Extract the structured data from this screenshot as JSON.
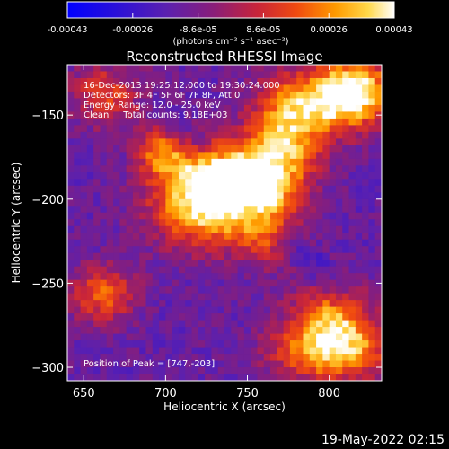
{
  "chart_data": {
    "type": "heatmap",
    "title": "Reconstructed RHESSI Image",
    "xlabel": "Heliocentric X (arcsec)",
    "ylabel": "Heliocentric Y (arcsec)",
    "xlim": [
      640,
      832
    ],
    "ylim": [
      -308,
      -120
    ],
    "xticks": [
      650,
      700,
      750,
      800
    ],
    "yticks": [
      -150,
      -200,
      -250,
      -300
    ],
    "colorbar": {
      "ticks": [
        "-0.00043",
        "-0.00026",
        "-8.6e-05",
        "8.6e-05",
        "0.00026",
        "0.00043"
      ],
      "label": "(photons cm⁻² s⁻¹ asec⁻²)",
      "range": [
        -0.00043,
        0.00043
      ],
      "colormap": [
        "#0000ff",
        "#3a00c8",
        "#6a1a9a",
        "#a0205a",
        "#e0301e",
        "#ff8a00",
        "#ffd33a",
        "#ffffff"
      ]
    },
    "annotations": [
      "16-Dec-2013 19:25:12.000 to 19:30:24.000",
      "Detectors: 3F 4F 5F 6F 7F 8F, Att 0",
      "Energy Range: 12.0 - 25.0 keV",
      "Clean     Total counts: 9.18E+03"
    ],
    "peak_label": "Position of Peak = [747,-203]",
    "peak": [
      747,
      -203
    ],
    "sources": [
      {
        "x": 725,
        "y": -200,
        "amp": 1.0,
        "sx": 24,
        "sy": 18
      },
      {
        "x": 735,
        "y": -182,
        "amp": 0.7,
        "sx": 20,
        "sy": 12
      },
      {
        "x": 770,
        "y": -165,
        "amp": 0.75,
        "sx": 16,
        "sy": 22
      },
      {
        "x": 800,
        "y": -140,
        "amp": 0.8,
        "sx": 22,
        "sy": 14
      },
      {
        "x": 815,
        "y": -130,
        "amp": 0.6,
        "sx": 14,
        "sy": 12
      },
      {
        "x": 695,
        "y": -170,
        "amp": 0.55,
        "sx": 10,
        "sy": 10
      },
      {
        "x": 665,
        "y": -135,
        "amp": 0.45,
        "sx": 18,
        "sy": 14
      },
      {
        "x": 660,
        "y": -255,
        "amp": 0.55,
        "sx": 14,
        "sy": 12
      },
      {
        "x": 800,
        "y": -270,
        "amp": 0.7,
        "sx": 18,
        "sy": 14
      },
      {
        "x": 800,
        "y": -290,
        "amp": 0.7,
        "sx": 26,
        "sy": 12
      },
      {
        "x": 760,
        "y": -210,
        "amp": 0.45,
        "sx": 12,
        "sy": 18
      }
    ],
    "grid": false
  },
  "footer": {
    "timestamp": "19-May-2022 02:15"
  }
}
